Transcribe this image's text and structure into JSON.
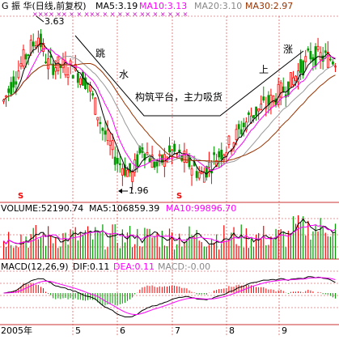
{
  "header": {
    "stock": "G 振  华(日线,前复权)",
    "ma5": "MA5:3.19",
    "ma10": "MA10:3.13",
    "ma20": "MA20:3.10",
    "ma30": "MA30:2.97",
    "marks": "×××× ××  ×   ×   ×××  × ×     ×  ×  × ××  × ×  ×  ×  ×"
  },
  "volume_header": {
    "vol": "VOLUME:52190.74",
    "ma5": "MA5:106859.39",
    "ma10": "MA10:99896.70"
  },
  "macd_header": {
    "params": "MACD(12,26,9)",
    "dif": "DIF:0.11",
    "dea": "DEA:0.11",
    "macd": "MACD:-0.00"
  },
  "annotations": {
    "high": "3.63",
    "low": "1.96",
    "tiao": "跳",
    "shui": "水",
    "platform": "构筑平台，主力吸货",
    "shang": "上",
    "zhang": "涨",
    "s_marker": "S"
  },
  "colors": {
    "up": "#ff0000",
    "down": "#009900",
    "ma5": "#000000",
    "ma10": "#ff00ff",
    "ma20": "#999999",
    "ma30": "#993300",
    "grid": "#cc3333",
    "dif": "#000000",
    "dea": "#ff00ff"
  },
  "chart_data": [
    {
      "type": "candlestick",
      "title": "G 振  华(日线,前复权)",
      "x_axis_labels": [
        "2005年",
        "5",
        "6",
        "7",
        "8",
        "9"
      ],
      "series": [
        {
          "name": "MA5",
          "value": 3.19
        },
        {
          "name": "MA10",
          "value": 3.13
        },
        {
          "name": "MA20",
          "value": 3.1
        },
        {
          "name": "MA30",
          "value": 2.97
        }
      ],
      "annotations": [
        {
          "text": "3.63",
          "meaning": "period high"
        },
        {
          "text": "1.96",
          "meaning": "period low"
        }
      ],
      "ylim": [
        1.8,
        3.75
      ]
    },
    {
      "type": "bar",
      "title": "VOLUME",
      "series": [
        {
          "name": "VOLUME",
          "value": 52190.74
        },
        {
          "name": "MA5",
          "value": 106859.39
        },
        {
          "name": "MA10",
          "value": 99896.7
        }
      ]
    },
    {
      "type": "line",
      "title": "MACD(12,26,9)",
      "series": [
        {
          "name": "DIF",
          "value": 0.11
        },
        {
          "name": "DEA",
          "value": 0.11
        },
        {
          "name": "MACD",
          "value": -0.0
        }
      ]
    }
  ]
}
